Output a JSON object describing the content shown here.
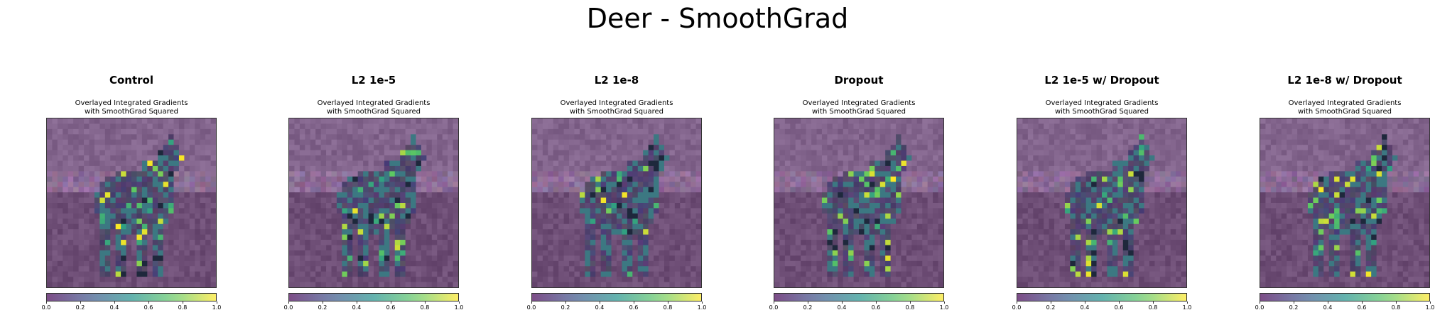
{
  "figure": {
    "suptitle": "Deer - SmoothGrad"
  },
  "chart_data": [
    {
      "type": "heatmap",
      "title": "Control",
      "subtitle": "Overlayed Integrated Gradients\nwith SmoothGrad Squared",
      "colorbar": {
        "range": [
          0.0,
          1.0
        ],
        "ticks": [
          "0.0",
          "0.2",
          "0.4",
          "0.6",
          "0.8",
          "1.0"
        ]
      }
    },
    {
      "type": "heatmap",
      "title": "L2 1e-5",
      "subtitle": "Overlayed Integrated Gradients\nwith SmoothGrad Squared",
      "colorbar": {
        "range": [
          0.0,
          1.0
        ],
        "ticks": [
          "0.0",
          "0.2",
          "0.4",
          "0.6",
          "0.8",
          "1.0"
        ]
      }
    },
    {
      "type": "heatmap",
      "title": "L2 1e-8",
      "subtitle": "Overlayed Integrated Gradients\nwith SmoothGrad Squared",
      "colorbar": {
        "range": [
          0.0,
          1.0
        ],
        "ticks": [
          "0.0",
          "0.2",
          "0.4",
          "0.6",
          "0.8",
          "1.0"
        ]
      }
    },
    {
      "type": "heatmap",
      "title": "Dropout",
      "subtitle": "Overlayed Integrated Gradients\nwith SmoothGrad Squared",
      "colorbar": {
        "range": [
          0.0,
          1.0
        ],
        "ticks": [
          "0.0",
          "0.2",
          "0.4",
          "0.6",
          "0.8",
          "1.0"
        ]
      }
    },
    {
      "type": "heatmap",
      "title": "L2 1e-5 w/ Dropout",
      "subtitle": "Overlayed Integrated Gradients\nwith SmoothGrad Squared",
      "colorbar": {
        "range": [
          0.0,
          1.0
        ],
        "ticks": [
          "0.0",
          "0.2",
          "0.4",
          "0.6",
          "0.8",
          "1.0"
        ]
      }
    },
    {
      "type": "heatmap",
      "title": "L2 1e-8 w/ Dropout",
      "subtitle": "Overlayed Integrated Gradients\nwith SmoothGrad Squared",
      "colorbar": {
        "range": [
          0.0,
          1.0
        ],
        "ticks": [
          "0.0",
          "0.2",
          "0.4",
          "0.6",
          "0.8",
          "1.0"
        ]
      }
    }
  ]
}
